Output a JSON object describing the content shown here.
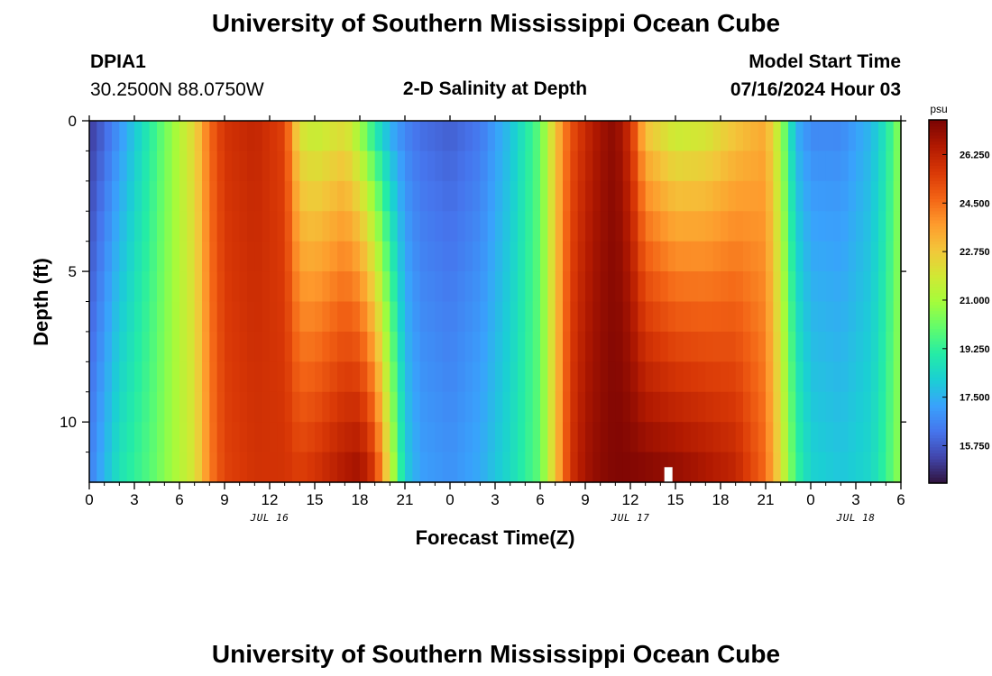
{
  "header": {
    "title": "University of Southern Mississippi Ocean Cube",
    "station_id": "DPIA1",
    "station_coords": "30.2500N  88.0750W",
    "chart_title": "2-D Salinity at Depth",
    "model_label": "Model Start Time",
    "model_start": "07/16/2024 Hour 03"
  },
  "footer": {
    "title": "University of Southern Mississippi Ocean Cube"
  },
  "chart_data": {
    "type": "heatmap",
    "title": "2-D Salinity at Depth",
    "xlabel": "Forecast Time(Z)",
    "ylabel": "Depth (ft)",
    "x_tick_labels": [
      "0",
      "3",
      "6",
      "9",
      "12",
      "15",
      "18",
      "21",
      "0",
      "3",
      "6",
      "9",
      "12",
      "15",
      "18",
      "21",
      "0",
      "3",
      "6"
    ],
    "x_ticks_hours": [
      0,
      3,
      6,
      9,
      12,
      15,
      18,
      21,
      24,
      27,
      30,
      33,
      36,
      39,
      42,
      45,
      48,
      51,
      54
    ],
    "date_labels": [
      "JUL 16",
      "JUL 17",
      "JUL 18"
    ],
    "date_label_hours": [
      12,
      36,
      51
    ],
    "y_tick_labels": [
      "0",
      "5",
      "10"
    ],
    "y_ticks": [
      0,
      5,
      10
    ],
    "xlim": [
      0,
      54
    ],
    "ylim": [
      0,
      12
    ],
    "colorbar": {
      "unit": "psu",
      "tick_labels": [
        "26.250",
        "24.500",
        "22.750",
        "21.000",
        "19.250",
        "17.500",
        "15.750"
      ],
      "ticks": [
        26.25,
        24.5,
        22.75,
        21.0,
        19.25,
        17.5,
        15.75
      ],
      "range": [
        14.4,
        27.5
      ],
      "colormap": [
        "#30123b",
        "#4145ab",
        "#4675ed",
        "#39a2fc",
        "#1bcfd4",
        "#24eca6",
        "#61fc6c",
        "#a4fc3b",
        "#d1e834",
        "#f3c63a",
        "#fe9b2d",
        "#f36315",
        "#d93806",
        "#b11901",
        "#7a0403"
      ]
    },
    "salinity_profiles": [
      {
        "hour": 0,
        "top": 15.0,
        "bottom": 16.5
      },
      {
        "hour": 2,
        "top": 16.8,
        "bottom": 18.8
      },
      {
        "hour": 4,
        "top": 19.0,
        "bottom": 19.8
      },
      {
        "hour": 6,
        "top": 21.3,
        "bottom": 21.3
      },
      {
        "hour": 7,
        "top": 22.4,
        "bottom": 22.0
      },
      {
        "hour": 8,
        "top": 24.6,
        "bottom": 24.2
      },
      {
        "hour": 9,
        "top": 25.8,
        "bottom": 25.4
      },
      {
        "hour": 11,
        "top": 26.2,
        "bottom": 25.8
      },
      {
        "hour": 13,
        "top": 25.4,
        "bottom": 25.8
      },
      {
        "hour": 14,
        "top": 21.8,
        "bottom": 25.6
      },
      {
        "hour": 15,
        "top": 21.3,
        "bottom": 25.9
      },
      {
        "hour": 16,
        "top": 21.6,
        "bottom": 26.3
      },
      {
        "hour": 17,
        "top": 21.9,
        "bottom": 26.7
      },
      {
        "hour": 18,
        "top": 20.5,
        "bottom": 27.0
      },
      {
        "hour": 19,
        "top": 18.5,
        "bottom": 25.8
      },
      {
        "hour": 20,
        "top": 17.2,
        "bottom": 22.0
      },
      {
        "hour": 21,
        "top": 16.5,
        "bottom": 18.2
      },
      {
        "hour": 22,
        "top": 16.1,
        "bottom": 17.2
      },
      {
        "hour": 24,
        "top": 15.8,
        "bottom": 16.9
      },
      {
        "hour": 26,
        "top": 16.3,
        "bottom": 17.4
      },
      {
        "hour": 28,
        "top": 17.8,
        "bottom": 18.5
      },
      {
        "hour": 30,
        "top": 20.0,
        "bottom": 20.0
      },
      {
        "hour": 31,
        "top": 22.8,
        "bottom": 22.8
      },
      {
        "hour": 32,
        "top": 25.0,
        "bottom": 25.8
      },
      {
        "hour": 33,
        "top": 26.0,
        "bottom": 26.8
      },
      {
        "hour": 34,
        "top": 26.8,
        "bottom": 27.2
      },
      {
        "hour": 35,
        "top": 27.2,
        "bottom": 27.4
      },
      {
        "hour": 36,
        "top": 25.8,
        "bottom": 27.4
      },
      {
        "hour": 37,
        "top": 22.6,
        "bottom": 27.4
      },
      {
        "hour": 39,
        "top": 21.3,
        "bottom": 27.2
      },
      {
        "hour": 41,
        "top": 21.6,
        "bottom": 26.8
      },
      {
        "hour": 43,
        "top": 22.6,
        "bottom": 26.3
      },
      {
        "hour": 45,
        "top": 23.4,
        "bottom": 24.6
      },
      {
        "hour": 46,
        "top": 21.0,
        "bottom": 22.2
      },
      {
        "hour": 47,
        "top": 17.4,
        "bottom": 19.5
      },
      {
        "hour": 48,
        "top": 16.6,
        "bottom": 18.3
      },
      {
        "hour": 50,
        "top": 16.6,
        "bottom": 18.0
      },
      {
        "hour": 52,
        "top": 17.6,
        "bottom": 18.4
      },
      {
        "hour": 53,
        "top": 18.8,
        "bottom": 19.4
      },
      {
        "hour": 54,
        "top": 20.8,
        "bottom": 20.8
      }
    ],
    "missing_cell": {
      "hour": 38.5,
      "depth_from": 11.5,
      "depth_to": 12
    }
  }
}
